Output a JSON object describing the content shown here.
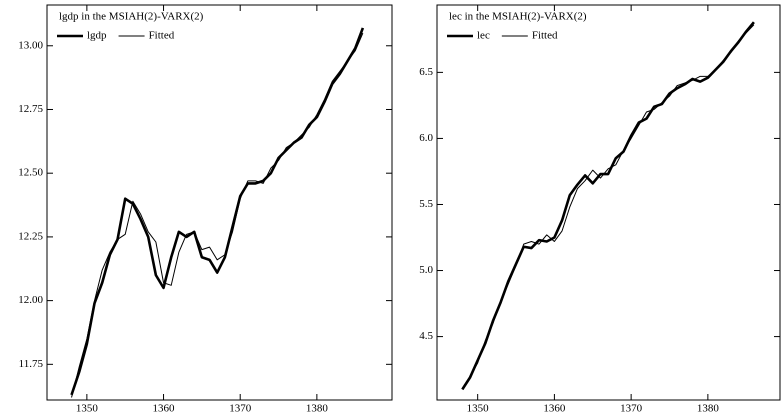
{
  "chart_data": [
    {
      "type": "line",
      "title": "lgdp in the MSIAH(2)-VARX(2)",
      "x": [
        1348,
        1349,
        1350,
        1351,
        1352,
        1353,
        1354,
        1355,
        1356,
        1357,
        1358,
        1359,
        1360,
        1361,
        1362,
        1363,
        1364,
        1365,
        1366,
        1367,
        1368,
        1369,
        1370,
        1371,
        1372,
        1373,
        1374,
        1375,
        1376,
        1377,
        1378,
        1379,
        1380,
        1381,
        1382,
        1383,
        1384,
        1385,
        1386
      ],
      "series": [
        {
          "name": "lgdp",
          "color": "#000000",
          "width": 2.6,
          "values": [
            11.63,
            11.72,
            11.83,
            11.99,
            12.07,
            12.18,
            12.24,
            12.4,
            12.38,
            12.32,
            12.25,
            12.1,
            12.05,
            12.17,
            12.27,
            12.25,
            12.27,
            12.17,
            12.16,
            12.11,
            12.17,
            12.29,
            12.41,
            12.46,
            12.46,
            12.47,
            12.5,
            12.56,
            12.59,
            12.62,
            12.64,
            12.69,
            12.72,
            12.78,
            12.85,
            12.89,
            12.94,
            12.99,
            13.07
          ]
        },
        {
          "name": "Fitted",
          "color": "#000000",
          "width": 1,
          "values": [
            11.62,
            11.74,
            11.85,
            12.0,
            12.12,
            12.19,
            12.24,
            12.26,
            12.39,
            12.34,
            12.27,
            12.23,
            12.07,
            12.06,
            12.19,
            12.26,
            12.27,
            12.2,
            12.21,
            12.16,
            12.18,
            12.27,
            12.4,
            12.47,
            12.47,
            12.46,
            12.52,
            12.55,
            12.6,
            12.62,
            12.65,
            12.68,
            12.73,
            12.79,
            12.86,
            12.9,
            12.94,
            12.98,
            13.05
          ]
        }
      ],
      "xlim": [
        1344.8,
        1389.8
      ],
      "xticks": [
        1350,
        1360,
        1370,
        1380
      ],
      "ylim": [
        11.61,
        13.16
      ],
      "yticks": [
        11.75,
        {
          "value": 12,
          "label": "12.00"
        },
        12.25,
        {
          "value": 12.5,
          "label": "12.50"
        },
        12.75,
        {
          "value": 13,
          "label": "13.00"
        }
      ]
    },
    {
      "type": "line",
      "title": "lec in the MSIAH(2)-VARX(2)",
      "x": [
        1348,
        1349,
        1350,
        1351,
        1352,
        1353,
        1354,
        1355,
        1356,
        1357,
        1358,
        1359,
        1360,
        1361,
        1362,
        1363,
        1364,
        1365,
        1366,
        1367,
        1368,
        1369,
        1370,
        1371,
        1372,
        1373,
        1374,
        1375,
        1376,
        1377,
        1378,
        1379,
        1380,
        1381,
        1382,
        1383,
        1384,
        1385,
        1386
      ],
      "series": [
        {
          "name": "lec",
          "color": "#000000",
          "width": 2.6,
          "values": [
            4.1,
            4.19,
            4.32,
            4.45,
            4.62,
            4.76,
            4.92,
            5.05,
            5.18,
            5.17,
            5.23,
            5.22,
            5.25,
            5.38,
            5.57,
            5.65,
            5.72,
            5.66,
            5.73,
            5.73,
            5.85,
            5.9,
            6.02,
            6.12,
            6.15,
            6.24,
            6.26,
            6.34,
            6.38,
            6.41,
            6.45,
            6.43,
            6.46,
            6.52,
            6.58,
            6.66,
            6.73,
            6.81,
            6.88
          ]
        },
        {
          "name": "Fitted",
          "color": "#000000",
          "width": 1,
          "values": [
            4.11,
            4.2,
            4.3,
            4.47,
            4.6,
            4.77,
            4.9,
            5.04,
            5.2,
            5.22,
            5.2,
            5.27,
            5.22,
            5.3,
            5.48,
            5.62,
            5.68,
            5.76,
            5.7,
            5.77,
            5.8,
            5.91,
            6.0,
            6.1,
            6.2,
            6.22,
            6.27,
            6.32,
            6.4,
            6.42,
            6.44,
            6.47,
            6.47,
            6.52,
            6.59,
            6.65,
            6.74,
            6.8,
            6.86
          ]
        }
      ],
      "xlim": [
        1344.7,
        1389.4
      ],
      "xticks": [
        1350,
        1360,
        1370,
        1380
      ],
      "ylim": [
        4.02,
        7.01
      ],
      "yticks": [
        4.5,
        {
          "value": 5,
          "label": "5.0"
        },
        5.5,
        {
          "value": 6,
          "label": "6.0"
        },
        6.5
      ]
    }
  ]
}
